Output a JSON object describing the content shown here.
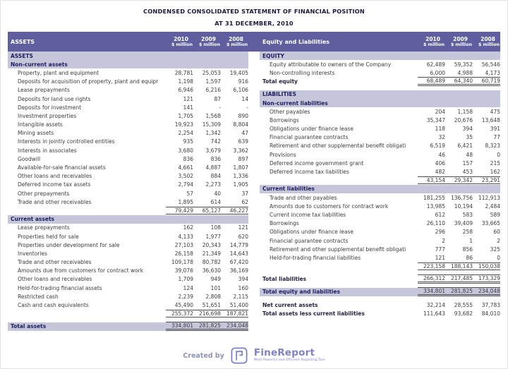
{
  "title": "CONDENSED CONSOLIDATED STATEMENT OF FINANCIAL POSITION",
  "subtitle": "AT 31 DECEMBER, 2010",
  "columns": [
    "2010",
    "2009",
    "2008"
  ],
  "unit_label": "$ million",
  "colors": {
    "header_bg": "#5f5f9f",
    "section_bg": "#c6c6db",
    "section_text": "#1c1c5e",
    "text": "#3c3c3c",
    "border": "#4c4c4c",
    "title_text": "#1a1a38",
    "brand": "#7e83c6",
    "created_by": "#9093b2"
  },
  "left_table": {
    "header": "ASSETS",
    "rows": [
      {
        "type": "section",
        "label": "ASSETS",
        "values": [
          "",
          "",
          ""
        ]
      },
      {
        "type": "section",
        "label": "Non-current assets",
        "values": [
          "",
          "",
          ""
        ]
      },
      {
        "type": "data",
        "label": "Property, plant and equipment",
        "values": [
          "28,781",
          "25,053",
          "19,405"
        ]
      },
      {
        "type": "data",
        "label": "Deposits for acquisition of property, plant and equipr",
        "values": [
          "1,198",
          "1,597",
          "916"
        ]
      },
      {
        "type": "data",
        "label": "Lease prepayments",
        "values": [
          "6,946",
          "6,216",
          "6,106"
        ]
      },
      {
        "type": "data",
        "label": "Deposits for land use rights",
        "values": [
          "121",
          "87",
          "14"
        ]
      },
      {
        "type": "data",
        "label": "Deposits for investment",
        "values": [
          "141",
          "-",
          "-"
        ]
      },
      {
        "type": "data",
        "label": "Investment properties",
        "values": [
          "1,705",
          "1,568",
          "890"
        ]
      },
      {
        "type": "data",
        "label": "Intangible assets",
        "values": [
          "19,923",
          "15,309",
          "8,804"
        ]
      },
      {
        "type": "data",
        "label": "Mining assets",
        "values": [
          "2,254",
          "1,342",
          "47"
        ]
      },
      {
        "type": "data",
        "label": "Interests in jointly controlled entities",
        "values": [
          "935",
          "742",
          "639"
        ]
      },
      {
        "type": "data",
        "label": "Interests in associates",
        "values": [
          "3,680",
          "3,679",
          "3,362"
        ]
      },
      {
        "type": "data",
        "label": "Goodwill",
        "values": [
          "836",
          "836",
          "897"
        ]
      },
      {
        "type": "data",
        "label": "Available-for-sale financial assets",
        "values": [
          "4,661",
          "4,887",
          "1,807"
        ]
      },
      {
        "type": "data",
        "label": "Other loans and receivables",
        "values": [
          "3,502",
          "884",
          "1,336"
        ]
      },
      {
        "type": "data",
        "label": "Deferred income tax assets",
        "values": [
          "2,794",
          "2,273",
          "1,905"
        ]
      },
      {
        "type": "data",
        "label": "Other prepayments",
        "values": [
          "57",
          "40",
          "37"
        ]
      },
      {
        "type": "data",
        "label": "Trade and other receivables",
        "values": [
          "1,895",
          "614",
          "62"
        ]
      },
      {
        "type": "subtotal",
        "label": "",
        "values": [
          "79,429",
          "65,127",
          "46,227"
        ]
      },
      {
        "type": "section",
        "label": "Current assets",
        "values": [
          "",
          "",
          ""
        ]
      },
      {
        "type": "data",
        "label": "Lease prepayments",
        "values": [
          "162",
          "108",
          "121"
        ]
      },
      {
        "type": "data",
        "label": "Properties held for sale",
        "values": [
          "4,133",
          "1,977",
          "620"
        ]
      },
      {
        "type": "data",
        "label": "Properties under development for sale",
        "values": [
          "27,103",
          "20,343",
          "14,779"
        ]
      },
      {
        "type": "data",
        "label": "Inventories",
        "values": [
          "26,158",
          "21,349",
          "14,643"
        ]
      },
      {
        "type": "data",
        "label": "Trade and other receivables",
        "values": [
          "109,178",
          "80,782",
          "67,420"
        ]
      },
      {
        "type": "data",
        "label": "Amounts due from customers for contract work",
        "values": [
          "39,076",
          "36,630",
          "36,169"
        ]
      },
      {
        "type": "data",
        "label": "Other loans and receivables",
        "values": [
          "1,709",
          "949",
          "394"
        ]
      },
      {
        "type": "data",
        "label": "Held-for-trading financial assets",
        "values": [
          "124",
          "101",
          "160"
        ]
      },
      {
        "type": "data",
        "label": "Restricted cash",
        "values": [
          "2,239",
          "2,808",
          "2,115"
        ]
      },
      {
        "type": "data",
        "label": "Cash and cash equivalents",
        "values": [
          "45,490",
          "51,651",
          "51,400"
        ]
      },
      {
        "type": "subtotal",
        "label": "",
        "values": [
          "255,372",
          "216,698",
          "187,821"
        ]
      },
      {
        "type": "gap",
        "label": "",
        "values": [
          "",
          "",
          ""
        ]
      },
      {
        "type": "grand_total",
        "label": "Total assets",
        "values": [
          "334,801",
          "281,825",
          "234,048"
        ]
      }
    ]
  },
  "right_table": {
    "header": "Equity and Liabilities",
    "rows": [
      {
        "type": "section",
        "label": "EQUITY",
        "values": [
          "",
          "",
          ""
        ]
      },
      {
        "type": "data",
        "label": "Equity attributable to owners of the Company",
        "values": [
          "62,489",
          "59,352",
          "56,546"
        ]
      },
      {
        "type": "data",
        "label": "Non-controlling interests",
        "values": [
          "6,000",
          "4,988",
          "4,173"
        ]
      },
      {
        "type": "total_double",
        "label": "Total equity",
        "values": [
          "68,489",
          "64,340",
          "60,719"
        ]
      },
      {
        "type": "gap",
        "label": "",
        "values": [
          "",
          "",
          ""
        ]
      },
      {
        "type": "section",
        "label": "LIABILITIES",
        "values": [
          "",
          "",
          ""
        ]
      },
      {
        "type": "section",
        "label": "Non-current liabilities",
        "values": [
          "",
          "",
          ""
        ]
      },
      {
        "type": "data",
        "label": "Other payables",
        "values": [
          "204",
          "1,158",
          "475"
        ]
      },
      {
        "type": "data",
        "label": "Borrowings",
        "values": [
          "35,347",
          "20,676",
          "13,648"
        ]
      },
      {
        "type": "data",
        "label": "Obligations under finance lease",
        "values": [
          "118",
          "394",
          "391"
        ]
      },
      {
        "type": "data",
        "label": "Financial guarantee contracts",
        "values": [
          "32",
          "35",
          "77"
        ]
      },
      {
        "type": "data",
        "label": "Retirement and other supplemental benefit obligati",
        "values": [
          "6,519",
          "6,421",
          "8,323"
        ]
      },
      {
        "type": "data",
        "label": "Provisions",
        "values": [
          "46",
          "48",
          "0"
        ]
      },
      {
        "type": "data",
        "label": "Deferred income government grant",
        "values": [
          "406",
          "157",
          "215"
        ]
      },
      {
        "type": "data",
        "label": "Deferred income tax liabilities",
        "values": [
          "482",
          "453",
          "162"
        ]
      },
      {
        "type": "subtotal",
        "label": "",
        "values": [
          "43,154",
          "29,342",
          "23,291"
        ]
      },
      {
        "type": "section",
        "label": "Current liabilities",
        "values": [
          "",
          "",
          ""
        ]
      },
      {
        "type": "data",
        "label": "Trade and other payables",
        "values": [
          "181,255",
          "136,756",
          "112,913"
        ]
      },
      {
        "type": "data",
        "label": "Amounts due to customers for contract work",
        "values": [
          "13,985",
          "10,194",
          "2,484"
        ]
      },
      {
        "type": "data",
        "label": "Current income tax liabilities",
        "values": [
          "612",
          "583",
          "589"
        ]
      },
      {
        "type": "data",
        "label": "Borrowings",
        "values": [
          "26,110",
          "39,409",
          "33,665"
        ]
      },
      {
        "type": "data",
        "label": "Obligations under finance lease",
        "values": [
          "296",
          "258",
          "60"
        ]
      },
      {
        "type": "data",
        "label": "Financial guarantee contracts",
        "values": [
          "2",
          "1",
          "2"
        ]
      },
      {
        "type": "data",
        "label": "Retirement and other supplemental benefit obligati",
        "values": [
          "777",
          "856",
          "325"
        ]
      },
      {
        "type": "data",
        "label": "Held-for-trading financial liabilities",
        "values": [
          "121",
          "86",
          "0"
        ]
      },
      {
        "type": "subtotal",
        "label": "",
        "values": [
          "223,158",
          "188,143",
          "150,038"
        ]
      },
      {
        "type": "gap",
        "label": "",
        "values": [
          "",
          "",
          ""
        ]
      },
      {
        "type": "total_double",
        "label": "Total liabilities",
        "values": [
          "266,312",
          "217,485",
          "173,329"
        ]
      },
      {
        "type": "gap",
        "label": "",
        "values": [
          "",
          "",
          ""
        ]
      },
      {
        "type": "grand_total",
        "label": "Total equity and liabilities",
        "values": [
          "334,801",
          "281,825",
          "234,048"
        ]
      },
      {
        "type": "gap",
        "label": "",
        "values": [
          "",
          "",
          ""
        ]
      },
      {
        "type": "bold",
        "label": "Net current assets",
        "values": [
          "32,214",
          "28,555",
          "37,783"
        ]
      },
      {
        "type": "bold",
        "label": "Total assets less current liabilities",
        "values": [
          "111,643",
          "93,682",
          "84,010"
        ]
      }
    ]
  },
  "footer": {
    "created_by": "Created by",
    "brand": "FineReport",
    "tagline": "Most Powerful and Efficient Reporting Tool",
    "logo_icon": "finereport-logo-icon"
  }
}
